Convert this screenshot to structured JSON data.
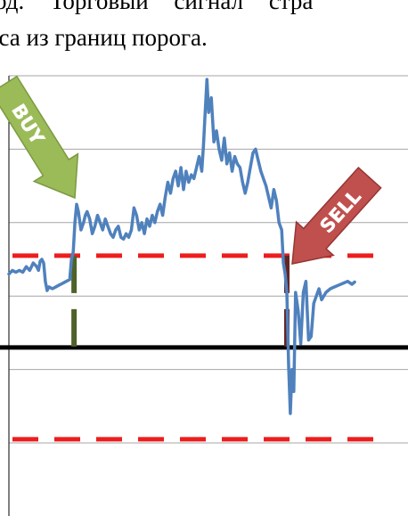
{
  "text": {
    "line1": "од.  Торговый  сигнал  стра",
    "line2": "кса из границ порога."
  },
  "colors": {
    "series": "#4f81bd",
    "threshold": "#ee1c1c",
    "zero_line": "#000000",
    "grid": "#a6a6a6",
    "buy_arrow": "#9bbb59",
    "sell_arrow": "#c0504d",
    "buy_marker": "#4f6228",
    "sell_marker": "#632523"
  },
  "chart_data": {
    "type": "line",
    "title": "",
    "xlabel": "",
    "ylabel": "",
    "xlim": [
      0,
      400
    ],
    "ylim": [
      -2.6,
      7.4
    ],
    "grid": true,
    "zero_line": 0,
    "threshold_upper": 2.5,
    "threshold_lower": -2.5,
    "series": [
      {
        "name": "",
        "x": [
          0,
          4,
          8,
          12,
          16,
          20,
          24,
          28,
          32,
          34,
          36,
          38,
          40,
          42,
          44,
          46,
          50,
          54,
          58,
          62,
          66,
          70,
          72,
          74,
          76,
          78,
          80,
          83,
          86,
          88,
          90,
          93,
          96,
          99,
          102,
          105,
          108,
          111,
          114,
          117,
          120,
          123,
          126,
          129,
          132,
          135,
          138,
          141,
          144,
          147,
          150,
          153,
          156,
          159,
          162,
          165,
          168,
          171,
          174,
          177,
          180,
          183,
          186,
          189,
          192,
          195,
          198,
          201,
          204,
          207,
          210,
          213,
          216,
          219,
          222,
          224,
          226,
          228,
          230,
          233,
          236,
          239,
          242,
          245,
          248,
          251,
          254,
          257,
          260,
          263,
          266,
          269,
          272,
          275,
          278,
          281,
          284,
          287,
          290,
          293,
          296,
          299,
          302,
          305,
          308,
          311,
          314,
          316,
          318,
          320,
          322,
          324,
          326,
          328,
          330,
          333,
          336,
          339,
          342,
          345,
          348,
          351,
          354,
          357,
          360,
          365,
          370,
          375,
          380,
          385,
          390,
          395,
          398
        ],
        "values": [
          2.0,
          2.1,
          2.05,
          2.1,
          2.05,
          2.2,
          2.1,
          2.3,
          2.2,
          2.1,
          2.35,
          2.4,
          2.3,
          1.8,
          1.55,
          1.65,
          1.6,
          1.65,
          1.7,
          1.75,
          1.8,
          1.85,
          2.4,
          2.6,
          3.4,
          3.9,
          3.7,
          3.2,
          3.4,
          3.6,
          3.7,
          3.5,
          3.1,
          3.3,
          3.6,
          3.4,
          3.2,
          3.5,
          3.3,
          3.1,
          3.0,
          3.2,
          3.3,
          3.0,
          2.95,
          3.1,
          3.0,
          3.2,
          3.8,
          3.6,
          3.2,
          3.4,
          3.1,
          3.5,
          3.3,
          3.6,
          3.4,
          3.7,
          3.9,
          3.6,
          4.1,
          4.5,
          4.2,
          4.6,
          4.8,
          4.4,
          4.9,
          4.3,
          4.8,
          4.5,
          4.7,
          4.6,
          4.9,
          5.2,
          4.8,
          5.5,
          6.4,
          7.3,
          6.4,
          6.8,
          5.6,
          5.9,
          5.4,
          5.1,
          5.7,
          5.0,
          5.3,
          4.8,
          5.2,
          5.0,
          4.9,
          4.5,
          4.2,
          4.5,
          4.9,
          5.3,
          5.4,
          5.1,
          4.8,
          4.6,
          4.4,
          4.1,
          3.8,
          4.3,
          4.0,
          3.4,
          3.2,
          2.3,
          2.0,
          1.5,
          -0.5,
          -1.8,
          -0.6,
          -1.2,
          1.5,
          1.0,
          0.1,
          1.5,
          1.8,
          0.2,
          0.3,
          1.2,
          1.4,
          1.6,
          1.3,
          1.5,
          1.6,
          1.65,
          1.7,
          1.75,
          1.8,
          1.72,
          1.78
        ]
      }
    ],
    "annotations": [
      {
        "label": "BUY",
        "x": 75
      },
      {
        "label": "SELL",
        "x": 320
      }
    ]
  }
}
